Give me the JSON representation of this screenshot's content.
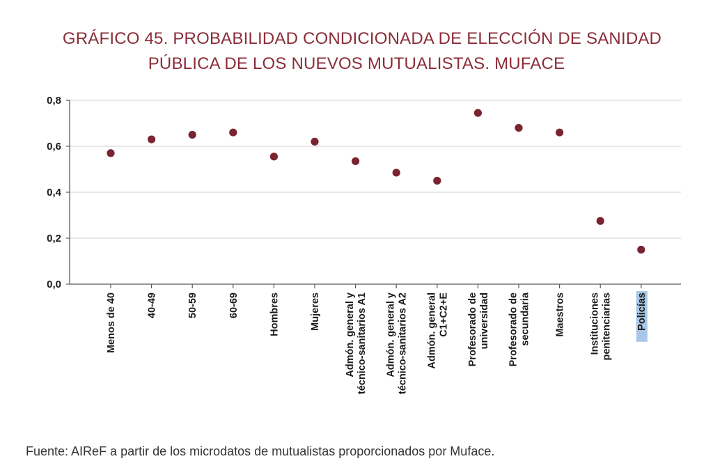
{
  "title_line1": "GRÁFICO 45.  PROBABILIDAD CONDICIONADA DE ELECCIÓN DE SANIDAD",
  "title_line2": "PÚBLICA DE LOS NUEVOS MUTUALISTAS. MUFACE",
  "source": "Fuente: AIReF a partir de los microdatos de mutualistas proporcionados por Muface.",
  "colors": {
    "title": "#8b2d38",
    "marker": "#7b2431",
    "grid": "#d9d9d9",
    "axis": "#595959",
    "highlight": "#a9c8e8"
  },
  "chart_data": {
    "type": "scatter",
    "title": "GRÁFICO 45.  PROBABILIDAD CONDICIONADA DE ELECCIÓN DE SANIDAD PÚBLICA DE LOS NUEVOS MUTUALISTAS. MUFACE",
    "xlabel": "",
    "ylabel": "",
    "ylim": [
      0,
      0.8
    ],
    "yticks": [
      "0,0",
      "0,2",
      "0,4",
      "0,6",
      "0,8"
    ],
    "grid": true,
    "legend": "none",
    "categories": [
      [
        "Menos de 40"
      ],
      [
        "40-49"
      ],
      [
        "50-59"
      ],
      [
        "60-69"
      ],
      [
        "Hombres"
      ],
      [
        "Mujeres"
      ],
      [
        "Admón. general y",
        "técnico-sanitarios A1"
      ],
      [
        "Admón. general y",
        "técnico-sanitarios A2"
      ],
      [
        "Admón. general",
        "C1+C2+E"
      ],
      [
        "Profesorado de",
        "universidad"
      ],
      [
        "Profesorado de",
        "secundaria"
      ],
      [
        "Maestros"
      ],
      [
        "Instituciones",
        "penitenciarias"
      ],
      [
        "Policías"
      ]
    ],
    "values": [
      0.57,
      0.63,
      0.65,
      0.66,
      0.555,
      0.62,
      0.535,
      0.485,
      0.45,
      0.745,
      0.68,
      0.66,
      0.275,
      0.15
    ],
    "highlighted_category_index": 13
  }
}
